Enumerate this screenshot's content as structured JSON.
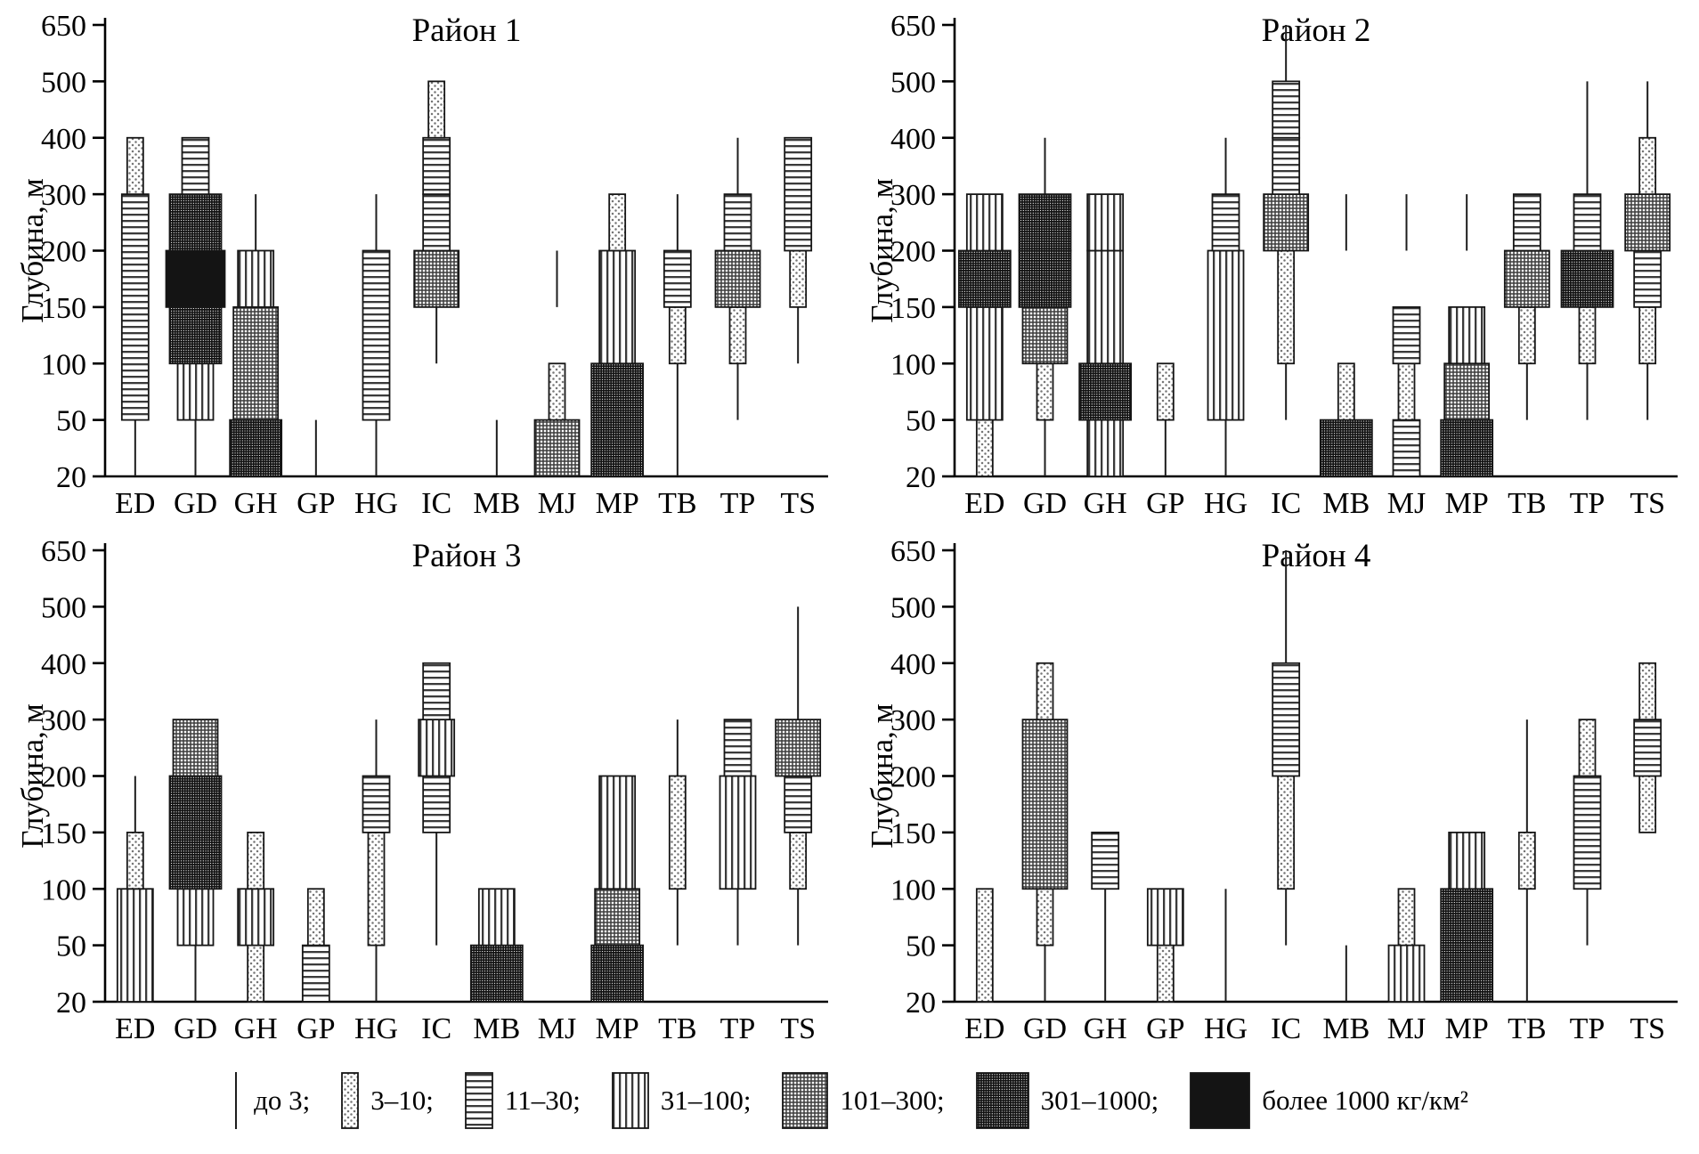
{
  "chart_data": {
    "type": "bar",
    "subtype": "stacked-depth-interval-bars; bar width and hatch pattern encode biomass density class (kg/km2); vertical axis is ordinal depth scale, deepest at top",
    "y_axis": {
      "label": "Глубина, м",
      "ticks": [
        20,
        50,
        100,
        150,
        200,
        300,
        400,
        500,
        650
      ],
      "tick_labels": [
        "20",
        "50",
        "100",
        "150",
        "200",
        "300",
        "400",
        "500",
        "650"
      ]
    },
    "categories": [
      "ED",
      "GD",
      "GH",
      "GP",
      "HG",
      "IC",
      "MB",
      "MJ",
      "MP",
      "TB",
      "TP",
      "TS"
    ],
    "legend": [
      {
        "key": "le3",
        "label": "до 3;"
      },
      {
        "key": "c3_10",
        "label": "3–10;"
      },
      {
        "key": "c11_30",
        "label": "11–30;"
      },
      {
        "key": "c31_100",
        "label": "31–100;"
      },
      {
        "key": "c101_300",
        "label": "101–300;"
      },
      {
        "key": "c301_1000",
        "label": "301–1000;"
      },
      {
        "key": "gt1000",
        "label": "более 1000 кг/км²"
      }
    ],
    "colors": {
      "ink": "#000000",
      "solid_block": "#141414",
      "background": "#ffffff"
    },
    "panels": [
      {
        "title": "Район 1",
        "bars": {
          "ED": [
            [
              20,
              50,
              "le3"
            ],
            [
              50,
              300,
              "c11_30"
            ],
            [
              300,
              400,
              "c3_10"
            ]
          ],
          "GD": [
            [
              20,
              50,
              "le3"
            ],
            [
              50,
              100,
              "c31_100"
            ],
            [
              100,
              150,
              "c301_1000"
            ],
            [
              150,
              200,
              "gt1000"
            ],
            [
              200,
              300,
              "c301_1000"
            ],
            [
              300,
              400,
              "c11_30"
            ]
          ],
          "GH": [
            [
              20,
              50,
              "c301_1000"
            ],
            [
              50,
              150,
              "c101_300"
            ],
            [
              150,
              200,
              "c31_100"
            ],
            [
              200,
              300,
              "le3"
            ]
          ],
          "GP": [
            [
              20,
              50,
              "le3"
            ]
          ],
          "HG": [
            [
              20,
              50,
              "le3"
            ],
            [
              50,
              200,
              "c11_30"
            ],
            [
              200,
              300,
              "le3"
            ]
          ],
          "IC": [
            [
              100,
              150,
              "le3"
            ],
            [
              150,
              200,
              "c101_300"
            ],
            [
              200,
              300,
              "c11_30"
            ],
            [
              300,
              400,
              "c11_30"
            ],
            [
              400,
              500,
              "c3_10"
            ]
          ],
          "MB": [
            [
              20,
              50,
              "le3"
            ]
          ],
          "MJ": [
            [
              20,
              50,
              "c101_300"
            ],
            [
              50,
              100,
              "c3_10"
            ],
            [
              150,
              200,
              "le3"
            ]
          ],
          "MP": [
            [
              20,
              100,
              "c301_1000"
            ],
            [
              100,
              200,
              "c31_100"
            ],
            [
              200,
              300,
              "c3_10"
            ]
          ],
          "TB": [
            [
              20,
              100,
              "le3"
            ],
            [
              100,
              150,
              "c3_10"
            ],
            [
              150,
              200,
              "c11_30"
            ],
            [
              200,
              300,
              "le3"
            ]
          ],
          "TP": [
            [
              50,
              100,
              "le3"
            ],
            [
              100,
              150,
              "c3_10"
            ],
            [
              150,
              200,
              "c101_300"
            ],
            [
              200,
              300,
              "c11_30"
            ],
            [
              300,
              400,
              "le3"
            ]
          ],
          "TS": [
            [
              100,
              150,
              "le3"
            ],
            [
              150,
              200,
              "c3_10"
            ],
            [
              200,
              400,
              "c11_30"
            ]
          ]
        }
      },
      {
        "title": "Район 2",
        "bars": {
          "ED": [
            [
              20,
              50,
              "c3_10"
            ],
            [
              50,
              150,
              "c31_100"
            ],
            [
              150,
              200,
              "c301_1000"
            ],
            [
              200,
              300,
              "c31_100"
            ]
          ],
          "GD": [
            [
              20,
              50,
              "le3"
            ],
            [
              50,
              100,
              "c3_10"
            ],
            [
              100,
              150,
              "c101_300"
            ],
            [
              150,
              200,
              "c301_1000"
            ],
            [
              200,
              300,
              "c301_1000"
            ],
            [
              300,
              400,
              "le3"
            ]
          ],
          "GH": [
            [
              20,
              50,
              "c31_100"
            ],
            [
              50,
              100,
              "c301_1000"
            ],
            [
              100,
              200,
              "c31_100"
            ],
            [
              200,
              300,
              "c31_100"
            ]
          ],
          "GP": [
            [
              20,
              50,
              "le3"
            ],
            [
              50,
              100,
              "c3_10"
            ]
          ],
          "HG": [
            [
              20,
              50,
              "le3"
            ],
            [
              50,
              200,
              "c31_100"
            ],
            [
              200,
              300,
              "c11_30"
            ],
            [
              300,
              400,
              "le3"
            ]
          ],
          "IC": [
            [
              50,
              100,
              "le3"
            ],
            [
              100,
              200,
              "c3_10"
            ],
            [
              200,
              300,
              "c101_300"
            ],
            [
              300,
              400,
              "c11_30"
            ],
            [
              400,
              500,
              "c11_30"
            ],
            [
              500,
              650,
              "le3"
            ]
          ],
          "MB": [
            [
              20,
              50,
              "c301_1000"
            ],
            [
              50,
              100,
              "c3_10"
            ],
            [
              200,
              300,
              "le3"
            ]
          ],
          "MJ": [
            [
              20,
              50,
              "c11_30"
            ],
            [
              50,
              100,
              "c3_10"
            ],
            [
              100,
              150,
              "c11_30"
            ],
            [
              200,
              300,
              "le3"
            ]
          ],
          "MP": [
            [
              20,
              50,
              "c301_1000"
            ],
            [
              50,
              100,
              "c101_300"
            ],
            [
              100,
              150,
              "c31_100"
            ],
            [
              200,
              300,
              "le3"
            ]
          ],
          "TB": [
            [
              50,
              100,
              "le3"
            ],
            [
              100,
              150,
              "c3_10"
            ],
            [
              150,
              200,
              "c101_300"
            ],
            [
              200,
              300,
              "c11_30"
            ]
          ],
          "TP": [
            [
              50,
              100,
              "le3"
            ],
            [
              100,
              150,
              "c3_10"
            ],
            [
              150,
              200,
              "c301_1000"
            ],
            [
              200,
              300,
              "c11_30"
            ],
            [
              300,
              500,
              "le3"
            ]
          ],
          "TS": [
            [
              50,
              100,
              "le3"
            ],
            [
              100,
              150,
              "c3_10"
            ],
            [
              150,
              200,
              "c11_30"
            ],
            [
              200,
              300,
              "c101_300"
            ],
            [
              300,
              400,
              "c3_10"
            ],
            [
              400,
              500,
              "le3"
            ]
          ]
        }
      },
      {
        "title": "Район 3",
        "bars": {
          "ED": [
            [
              20,
              100,
              "c31_100"
            ],
            [
              100,
              150,
              "c3_10"
            ],
            [
              150,
              200,
              "le3"
            ]
          ],
          "GD": [
            [
              20,
              50,
              "le3"
            ],
            [
              50,
              100,
              "c31_100"
            ],
            [
              100,
              200,
              "c301_1000"
            ],
            [
              200,
              300,
              "c101_300"
            ]
          ],
          "GH": [
            [
              20,
              50,
              "c3_10"
            ],
            [
              50,
              100,
              "c31_100"
            ],
            [
              100,
              150,
              "c3_10"
            ]
          ],
          "GP": [
            [
              20,
              50,
              "c11_30"
            ],
            [
              50,
              100,
              "c3_10"
            ]
          ],
          "HG": [
            [
              20,
              50,
              "le3"
            ],
            [
              50,
              150,
              "c3_10"
            ],
            [
              150,
              200,
              "c11_30"
            ],
            [
              200,
              300,
              "le3"
            ]
          ],
          "IC": [
            [
              50,
              150,
              "le3"
            ],
            [
              150,
              200,
              "c11_30"
            ],
            [
              200,
              300,
              "c31_100"
            ],
            [
              300,
              400,
              "c11_30"
            ]
          ],
          "MB": [
            [
              20,
              50,
              "c301_1000"
            ],
            [
              50,
              100,
              "c31_100"
            ]
          ],
          "MJ": [],
          "MP": [
            [
              20,
              50,
              "c301_1000"
            ],
            [
              50,
              100,
              "c101_300"
            ],
            [
              100,
              200,
              "c31_100"
            ]
          ],
          "TB": [
            [
              50,
              100,
              "le3"
            ],
            [
              100,
              200,
              "c3_10"
            ],
            [
              200,
              300,
              "le3"
            ]
          ],
          "TP": [
            [
              50,
              100,
              "le3"
            ],
            [
              100,
              200,
              "c31_100"
            ],
            [
              200,
              300,
              "c11_30"
            ]
          ],
          "TS": [
            [
              50,
              100,
              "le3"
            ],
            [
              100,
              150,
              "c3_10"
            ],
            [
              150,
              200,
              "c11_30"
            ],
            [
              200,
              300,
              "c101_300"
            ],
            [
              300,
              500,
              "le3"
            ]
          ]
        }
      },
      {
        "title": "Район 4",
        "bars": {
          "ED": [
            [
              20,
              100,
              "c3_10"
            ]
          ],
          "GD": [
            [
              20,
              50,
              "le3"
            ],
            [
              50,
              100,
              "c3_10"
            ],
            [
              100,
              300,
              "c101_300"
            ],
            [
              300,
              400,
              "c3_10"
            ]
          ],
          "GH": [
            [
              20,
              100,
              "le3"
            ],
            [
              100,
              150,
              "c11_30"
            ]
          ],
          "GP": [
            [
              20,
              50,
              "c3_10"
            ],
            [
              50,
              100,
              "c31_100"
            ]
          ],
          "HG": [
            [
              20,
              100,
              "le3"
            ]
          ],
          "IC": [
            [
              50,
              100,
              "le3"
            ],
            [
              100,
              200,
              "c3_10"
            ],
            [
              200,
              400,
              "c11_30"
            ],
            [
              400,
              650,
              "le3"
            ]
          ],
          "MB": [
            [
              20,
              50,
              "le3"
            ]
          ],
          "MJ": [
            [
              20,
              50,
              "c31_100"
            ],
            [
              50,
              100,
              "c3_10"
            ]
          ],
          "MP": [
            [
              20,
              100,
              "c301_1000"
            ],
            [
              100,
              150,
              "c31_100"
            ]
          ],
          "TB": [
            [
              20,
              100,
              "le3"
            ],
            [
              100,
              150,
              "c3_10"
            ],
            [
              150,
              300,
              "le3"
            ]
          ],
          "TP": [
            [
              50,
              100,
              "le3"
            ],
            [
              100,
              200,
              "c11_30"
            ],
            [
              200,
              300,
              "c3_10"
            ]
          ],
          "TS": [
            [
              150,
              200,
              "c3_10"
            ],
            [
              200,
              300,
              "c11_30"
            ],
            [
              300,
              400,
              "c3_10"
            ]
          ]
        }
      }
    ]
  }
}
